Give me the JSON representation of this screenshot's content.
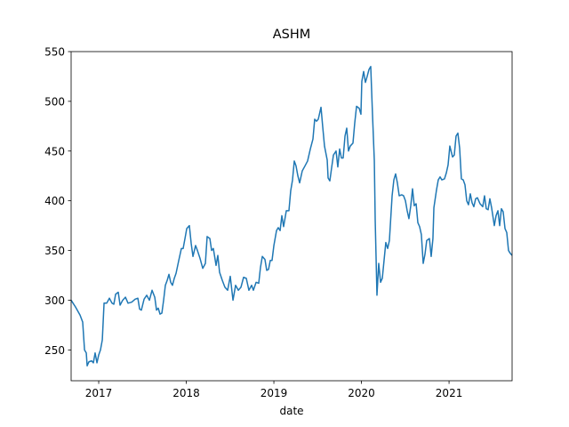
{
  "chart_data": {
    "type": "line",
    "title": "ASHM",
    "xlabel": "date",
    "color": "#1f77b4",
    "xlim": [
      2016.685,
      2021.72
    ],
    "xticks": [
      2017,
      2018,
      2019,
      2020,
      2021
    ],
    "ylim": [
      219,
      550
    ],
    "yticks": [
      250,
      300,
      350,
      400,
      450,
      500,
      550
    ],
    "x": [
      2016.685,
      2016.736,
      2016.787,
      2016.817,
      2016.838,
      2016.858,
      2016.868,
      2016.888,
      2016.919,
      2016.939,
      2016.959,
      2016.98,
      2017.0,
      2017.02,
      2017.041,
      2017.061,
      2017.091,
      2017.122,
      2017.152,
      2017.173,
      2017.193,
      2017.223,
      2017.244,
      2017.274,
      2017.305,
      2017.335,
      2017.376,
      2017.416,
      2017.447,
      2017.467,
      2017.487,
      2017.518,
      2017.548,
      2017.579,
      2017.609,
      2017.64,
      2017.66,
      2017.68,
      2017.7,
      2017.721,
      2017.741,
      2017.761,
      2017.782,
      2017.802,
      2017.822,
      2017.842,
      2017.863,
      2017.883,
      2017.914,
      2017.944,
      2017.964,
      2017.985,
      2018.005,
      2018.035,
      2018.056,
      2018.076,
      2018.106,
      2018.127,
      2018.157,
      2018.188,
      2018.218,
      2018.238,
      2018.269,
      2018.289,
      2018.309,
      2018.34,
      2018.36,
      2018.38,
      2018.411,
      2018.441,
      2018.472,
      2018.502,
      2018.533,
      2018.563,
      2018.594,
      2018.624,
      2018.654,
      2018.685,
      2018.715,
      2018.746,
      2018.766,
      2018.797,
      2018.827,
      2018.847,
      2018.868,
      2018.898,
      2018.918,
      2018.939,
      2018.959,
      2018.979,
      2019.0,
      2019.03,
      2019.05,
      2019.071,
      2019.091,
      2019.111,
      2019.142,
      2019.172,
      2019.192,
      2019.213,
      2019.233,
      2019.253,
      2019.274,
      2019.294,
      2019.324,
      2019.355,
      2019.385,
      2019.416,
      2019.446,
      2019.466,
      2019.487,
      2019.507,
      2019.538,
      2019.558,
      2019.578,
      2019.609,
      2019.619,
      2019.639,
      2019.659,
      2019.68,
      2019.71,
      2019.73,
      2019.751,
      2019.771,
      2019.791,
      2019.812,
      2019.832,
      2019.852,
      2019.872,
      2019.903,
      2019.923,
      2019.944,
      2019.974,
      2019.994,
      2020.004,
      2020.025,
      2020.045,
      2020.065,
      2020.086,
      2020.106,
      2020.126,
      2020.147,
      2020.157,
      2020.177,
      2020.197,
      2020.218,
      2020.238,
      2020.258,
      2020.278,
      2020.299,
      2020.319,
      2020.35,
      2020.37,
      2020.39,
      2020.41,
      2020.431,
      2020.461,
      2020.481,
      2020.502,
      2020.522,
      2020.542,
      2020.563,
      2020.583,
      2020.603,
      2020.624,
      2020.644,
      2020.664,
      2020.684,
      2020.705,
      2020.725,
      2020.745,
      2020.776,
      2020.796,
      2020.816,
      2020.827,
      2020.857,
      2020.877,
      2020.898,
      2020.918,
      2020.948,
      2020.969,
      2020.989,
      2021.009,
      2021.04,
      2021.06,
      2021.08,
      2021.101,
      2021.121,
      2021.141,
      2021.162,
      2021.182,
      2021.202,
      2021.222,
      2021.243,
      2021.263,
      2021.283,
      2021.304,
      2021.324,
      2021.354,
      2021.385,
      2021.405,
      2021.425,
      2021.446,
      2021.466,
      2021.486,
      2021.517,
      2021.537,
      2021.558,
      2021.578,
      2021.598,
      2021.618,
      2021.639,
      2021.659,
      2021.679,
      2021.7,
      2021.72
    ],
    "values": [
      300,
      293,
      285,
      278,
      250,
      247,
      234,
      238,
      239,
      237,
      247,
      237,
      245,
      250,
      260,
      297,
      297,
      302,
      297,
      296,
      306,
      308,
      295,
      300,
      303,
      297,
      298,
      301,
      302,
      291,
      290,
      301,
      305,
      300,
      310,
      303,
      290,
      292,
      286,
      287,
      300,
      315,
      320,
      326,
      318,
      315,
      322,
      327,
      340,
      352,
      352,
      362,
      372,
      375,
      357,
      344,
      355,
      350,
      342,
      332,
      337,
      364,
      362,
      350,
      352,
      335,
      345,
      328,
      320,
      313,
      310,
      324,
      300,
      315,
      310,
      313,
      323,
      322,
      310,
      315,
      310,
      318,
      317,
      333,
      344,
      341,
      330,
      331,
      340,
      340,
      355,
      370,
      373,
      370,
      385,
      374,
      390,
      390,
      410,
      421,
      440,
      435,
      425,
      418,
      430,
      435,
      440,
      452,
      462,
      482,
      480,
      482,
      494,
      474,
      455,
      441,
      423,
      420,
      433,
      446,
      450,
      434,
      452,
      443,
      443,
      465,
      473,
      450,
      455,
      458,
      478,
      495,
      493,
      487,
      520,
      530,
      519,
      525,
      532,
      535,
      487,
      440,
      380,
      305,
      337,
      318,
      322,
      340,
      358,
      352,
      360,
      405,
      421,
      427,
      418,
      405,
      406,
      405,
      400,
      390,
      382,
      395,
      412,
      395,
      397,
      378,
      374,
      366,
      337,
      346,
      360,
      362,
      344,
      362,
      393,
      411,
      421,
      424,
      421,
      422,
      428,
      436,
      455,
      444,
      446,
      465,
      468,
      453,
      422,
      421,
      416,
      400,
      396,
      407,
      398,
      394,
      402,
      403,
      397,
      394,
      405,
      392,
      391,
      402,
      393,
      375,
      385,
      390,
      375,
      392,
      389,
      372,
      368,
      350,
      347,
      345
    ]
  }
}
